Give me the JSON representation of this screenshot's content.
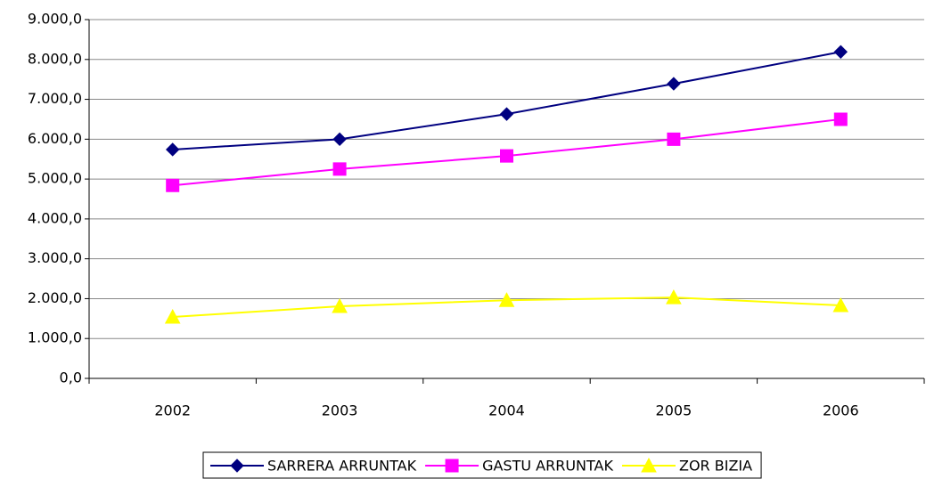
{
  "chart_data": {
    "type": "line",
    "categories": [
      "2002",
      "2003",
      "2004",
      "2005",
      "2006"
    ],
    "series": [
      {
        "name": "SARRERA ARRUNTAK",
        "color": "#000080",
        "marker": "diamond",
        "values": [
          5740,
          6000,
          6630,
          7390,
          8190
        ]
      },
      {
        "name": "GASTU ARRUNTAK",
        "color": "#ff00ff",
        "marker": "square",
        "values": [
          4840,
          5250,
          5580,
          6000,
          6500
        ]
      },
      {
        "name": "ZOR BIZIA",
        "color": "#ffff00",
        "marker": "triangle",
        "values": [
          1540,
          1810,
          1960,
          2030,
          1830
        ]
      }
    ],
    "ylim": [
      0,
      9000
    ],
    "yticks": [
      {
        "value": 0,
        "label": "0,0"
      },
      {
        "value": 1000,
        "label": "1.000,0"
      },
      {
        "value": 2000,
        "label": "2.000,0"
      },
      {
        "value": 3000,
        "label": "3.000,0"
      },
      {
        "value": 4000,
        "label": "4.000,0"
      },
      {
        "value": 5000,
        "label": "5.000,0"
      },
      {
        "value": 6000,
        "label": "6.000,0"
      },
      {
        "value": 7000,
        "label": "7.000,0"
      },
      {
        "value": 8000,
        "label": "8.000,0"
      },
      {
        "value": 9000,
        "label": "9.000,0"
      }
    ],
    "grid": true,
    "legend": "bottom"
  }
}
